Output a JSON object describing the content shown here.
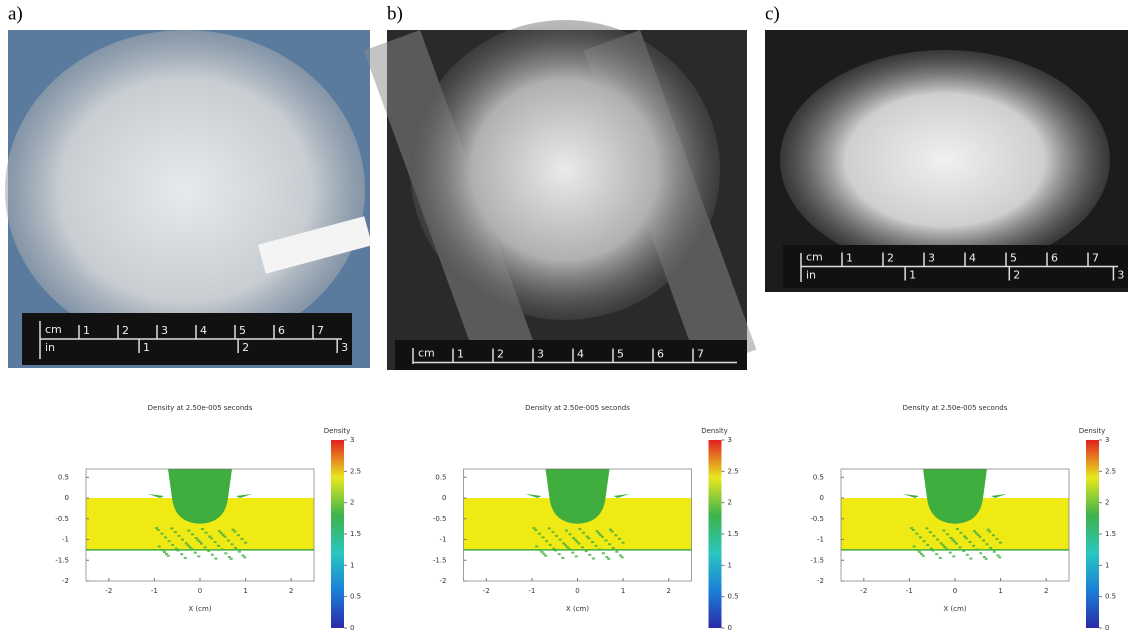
{
  "panels": [
    {
      "label": "a)",
      "ruler": {
        "top_unit": "cm",
        "top": [
          "1",
          "2",
          "3",
          "4",
          "5",
          "6",
          "7"
        ],
        "bottom_unit": "in",
        "bottom": [
          "1",
          "2",
          "3"
        ]
      }
    },
    {
      "label": "b)",
      "ruler": {
        "top_unit": "cm",
        "top": [
          "1",
          "2",
          "3",
          "4",
          "5",
          "6",
          "7"
        ]
      }
    },
    {
      "label": "c)",
      "ruler": {
        "top_unit": "cm",
        "top": [
          "1",
          "2",
          "3",
          "4",
          "5",
          "6",
          "7"
        ],
        "bottom_unit": "in",
        "bottom": [
          "1",
          "2",
          "3"
        ]
      }
    }
  ],
  "plots": [
    {
      "title": "Density at 2.50e-005 seconds",
      "xlabel": "X (cm)",
      "xlim": [
        -2.5,
        2.5
      ],
      "xticks": [
        -2,
        -1,
        0,
        1,
        2
      ],
      "ylim": [
        -2,
        0.7
      ],
      "yticks": [
        0.5,
        0,
        -0.5,
        -1,
        -1.5,
        -2
      ],
      "colorbar": {
        "label": "Density",
        "lim": [
          0,
          3
        ],
        "ticks": [
          3,
          2.5,
          2,
          1.5,
          1,
          0.5,
          0
        ]
      }
    },
    {
      "title": "Density at 2.50e-005 seconds",
      "xlabel": "X (cm)",
      "xlim": [
        -2.5,
        2.5
      ],
      "xticks": [
        -2,
        -1,
        0,
        1,
        2
      ],
      "ylim": [
        -2,
        0.7
      ],
      "yticks": [
        0.5,
        0,
        -0.5,
        -1,
        -1.5,
        -2
      ],
      "colorbar": {
        "label": "Density",
        "lim": [
          0,
          3
        ],
        "ticks": [
          3,
          2.5,
          2,
          1.5,
          1,
          0.5,
          0
        ]
      }
    },
    {
      "title": "Density at 2.50e-005 seconds",
      "xlabel": "X (cm)",
      "xlim": [
        -2.5,
        2.5
      ],
      "xticks": [
        -2,
        -1,
        0,
        1,
        2
      ],
      "ylim": [
        -2,
        0.7
      ],
      "yticks": [
        0.5,
        0,
        -0.5,
        -1,
        -1.5,
        -2
      ],
      "colorbar": {
        "label": "Density",
        "lim": [
          0,
          3
        ],
        "ticks": [
          3,
          2.5,
          2,
          1.5,
          1,
          0.5,
          0
        ]
      }
    }
  ]
}
